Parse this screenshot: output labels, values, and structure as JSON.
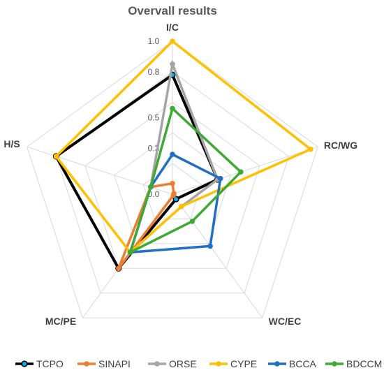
{
  "chart_data": {
    "type": "radar",
    "title": "Overvall results",
    "axes": [
      "I/C",
      "RC/WG",
      "WC/EC",
      "MC/PE",
      "H/S"
    ],
    "ticks": [
      0.0,
      0.3,
      0.5,
      0.8,
      1.0
    ],
    "tick_labels": [
      "0.0",
      "0.3",
      "0.5",
      "0.8",
      "1.0"
    ],
    "range": [
      0,
      1
    ],
    "grid": true,
    "legend_position": "bottom",
    "series": [
      {
        "name": "TCPO",
        "color": "#000000",
        "values": [
          0.78,
          0.31,
          0.04,
          0.6,
          0.8
        ]
      },
      {
        "name": "SINAPI",
        "color": "#ED7D31",
        "values": [
          0.07,
          0.01,
          0.01,
          0.6,
          0.15
        ]
      },
      {
        "name": "ORSE",
        "color": "#A5A5A5",
        "values": [
          0.85,
          0.31,
          0.1,
          0.47,
          0.15
        ]
      },
      {
        "name": "CYPE",
        "color": "#FFC000",
        "values": [
          1.0,
          0.95,
          0.1,
          0.47,
          0.8
        ]
      },
      {
        "name": "BCCA",
        "color": "#1F6FC5",
        "values": [
          0.26,
          0.33,
          0.42,
          0.47,
          0.15
        ]
      },
      {
        "name": "BDCCM",
        "color": "#3EAA35",
        "values": [
          0.56,
          0.47,
          0.22,
          0.47,
          0.15
        ]
      }
    ]
  }
}
